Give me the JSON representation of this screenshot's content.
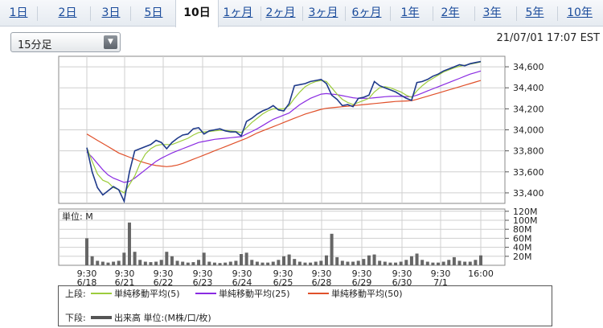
{
  "tabs": [
    {
      "label": "1日",
      "active": false
    },
    {
      "label": "2日",
      "active": false
    },
    {
      "label": "3日",
      "active": false
    },
    {
      "label": "5日",
      "active": false
    },
    {
      "label": "10日",
      "active": true
    },
    {
      "label": "1ヶ月",
      "active": false
    },
    {
      "label": "2ヶ月",
      "active": false
    },
    {
      "label": "3ヶ月",
      "active": false
    },
    {
      "label": "6ヶ月",
      "active": false
    },
    {
      "label": "1年",
      "active": false
    },
    {
      "label": "2年",
      "active": false
    },
    {
      "label": "3年",
      "active": false
    },
    {
      "label": "5年",
      "active": false
    },
    {
      "label": "10年",
      "active": false
    }
  ],
  "interval_select": {
    "value": "15分足"
  },
  "timestamp": "21/07/01 17:07 EST",
  "chart_data": [
    {
      "type": "line",
      "panel": "price",
      "y_ticks": [
        "34,600",
        "34,400",
        "34,200",
        "34,000",
        "33,800",
        "33,600",
        "33,400"
      ],
      "ylim": [
        33300,
        34700
      ],
      "grid": true,
      "x_tick_labels": [
        {
          "time": "9:30",
          "date": "6/18"
        },
        {
          "time": "9:30",
          "date": "6/21"
        },
        {
          "time": "9:30",
          "date": "6/22"
        },
        {
          "time": "9:30",
          "date": "6/23"
        },
        {
          "time": "9:30",
          "date": "6/24"
        },
        {
          "time": "9:30",
          "date": "6/25"
        },
        {
          "time": "9:30",
          "date": "6/28"
        },
        {
          "time": "9:30",
          "date": "6/29"
        },
        {
          "time": "9:30",
          "date": "6/30"
        },
        {
          "time": "9:30",
          "date": "7/1"
        },
        {
          "time": "16:00",
          "date": ""
        }
      ],
      "series": [
        {
          "name": "price",
          "color": "#1f3a8a",
          "values": [
            33830,
            33600,
            33450,
            33380,
            33420,
            33460,
            33430,
            33320,
            33600,
            33800,
            33820,
            33840,
            33860,
            33900,
            33880,
            33820,
            33880,
            33920,
            33950,
            33960,
            34010,
            34020,
            33960,
            33990,
            34000,
            34010,
            33990,
            33980,
            33980,
            33940,
            34080,
            34110,
            34150,
            34180,
            34200,
            34230,
            34190,
            34180,
            34250,
            34420,
            34430,
            34440,
            34460,
            34470,
            34480,
            34440,
            34330,
            34290,
            34230,
            34240,
            34220,
            34300,
            34310,
            34330,
            34460,
            34420,
            34400,
            34380,
            34360,
            34330,
            34300,
            34280,
            34450,
            34460,
            34480,
            34510,
            34530,
            34560,
            34580,
            34600,
            34620,
            34610,
            34630,
            34640,
            34650
          ]
        },
        {
          "name": "単純移動平均(5)",
          "color": "#9ccc3c",
          "values": [
            33830,
            33700,
            33580,
            33520,
            33500,
            33450,
            33430,
            33400,
            33480,
            33560,
            33680,
            33770,
            33820,
            33850,
            33860,
            33860,
            33860,
            33880,
            33900,
            33920,
            33950,
            33975,
            33980,
            33985,
            33990,
            33995,
            33995,
            33990,
            33985,
            33975,
            34020,
            34070,
            34110,
            34150,
            34180,
            34200,
            34200,
            34200,
            34230,
            34300,
            34360,
            34410,
            34440,
            34460,
            34470,
            34460,
            34400,
            34340,
            34290,
            34260,
            34240,
            34260,
            34280,
            34300,
            34360,
            34400,
            34410,
            34400,
            34380,
            34360,
            34330,
            34310,
            34370,
            34420,
            34460,
            34490,
            34520,
            34550,
            34570,
            34590,
            34605,
            34615,
            34625,
            34635,
            34645
          ]
        },
        {
          "name": "単純移動平均(25)",
          "color": "#8a2be2",
          "values": [
            33790,
            33740,
            33680,
            33620,
            33570,
            33540,
            33520,
            33500,
            33510,
            33540,
            33580,
            33620,
            33660,
            33700,
            33730,
            33755,
            33780,
            33800,
            33820,
            33840,
            33860,
            33880,
            33890,
            33900,
            33910,
            33915,
            33920,
            33925,
            33930,
            33935,
            33960,
            33985,
            34010,
            34040,
            34070,
            34100,
            34120,
            34140,
            34160,
            34200,
            34240,
            34270,
            34300,
            34320,
            34340,
            34345,
            34340,
            34335,
            34325,
            34315,
            34305,
            34300,
            34300,
            34300,
            34305,
            34310,
            34315,
            34318,
            34320,
            34318,
            34315,
            34315,
            34330,
            34350,
            34370,
            34390,
            34410,
            34430,
            34450,
            34470,
            34490,
            34510,
            34530,
            34545,
            34560
          ]
        },
        {
          "name": "単純移動平均(50)",
          "color": "#e0502a",
          "values": [
            33960,
            33930,
            33900,
            33870,
            33840,
            33810,
            33780,
            33760,
            33740,
            33720,
            33700,
            33685,
            33670,
            33660,
            33655,
            33650,
            33655,
            33665,
            33680,
            33700,
            33720,
            33740,
            33760,
            33780,
            33800,
            33820,
            33840,
            33860,
            33880,
            33900,
            33920,
            33945,
            33970,
            33990,
            34010,
            34030,
            34050,
            34070,
            34090,
            34110,
            34130,
            34150,
            34165,
            34180,
            34195,
            34205,
            34210,
            34215,
            34220,
            34225,
            34230,
            34235,
            34240,
            34245,
            34250,
            34255,
            34260,
            34265,
            34270,
            34272,
            34275,
            34278,
            34290,
            34305,
            34320,
            34335,
            34350,
            34365,
            34380,
            34395,
            34410,
            34425,
            34440,
            34455,
            34470
          ]
        }
      ]
    },
    {
      "type": "bar",
      "panel": "volume",
      "unit_label": "単位: M",
      "y_ticks": [
        "120M",
        "100M",
        "80M",
        "60M",
        "40M",
        "20M"
      ],
      "ylim": [
        0,
        125
      ],
      "grid": true,
      "values": [
        60,
        20,
        10,
        8,
        6,
        8,
        10,
        28,
        95,
        30,
        12,
        8,
        7,
        8,
        12,
        30,
        20,
        10,
        8,
        6,
        7,
        12,
        28,
        8,
        6,
        5,
        6,
        8,
        10,
        25,
        28,
        12,
        8,
        6,
        6,
        8,
        12,
        20,
        24,
        14,
        8,
        6,
        6,
        8,
        10,
        22,
        70,
        18,
        10,
        8,
        8,
        10,
        14,
        22,
        24,
        10,
        8,
        6,
        6,
        8,
        12,
        20,
        26,
        12,
        8,
        6,
        6,
        8,
        12,
        18,
        10,
        8,
        8,
        12,
        22
      ]
    }
  ],
  "legend": {
    "upper_label": "上段:",
    "lower_label": "下段:",
    "sma5": {
      "label": "単純移動平均(5)",
      "color": "#9ccc3c"
    },
    "sma25": {
      "label": "単純移動平均(25)",
      "color": "#8a2be2"
    },
    "sma50": {
      "label": "単純移動平均(50)",
      "color": "#e0502a"
    },
    "volume": {
      "label": "出来高 単位:(M株/口/枚)",
      "color": "#555555"
    }
  }
}
